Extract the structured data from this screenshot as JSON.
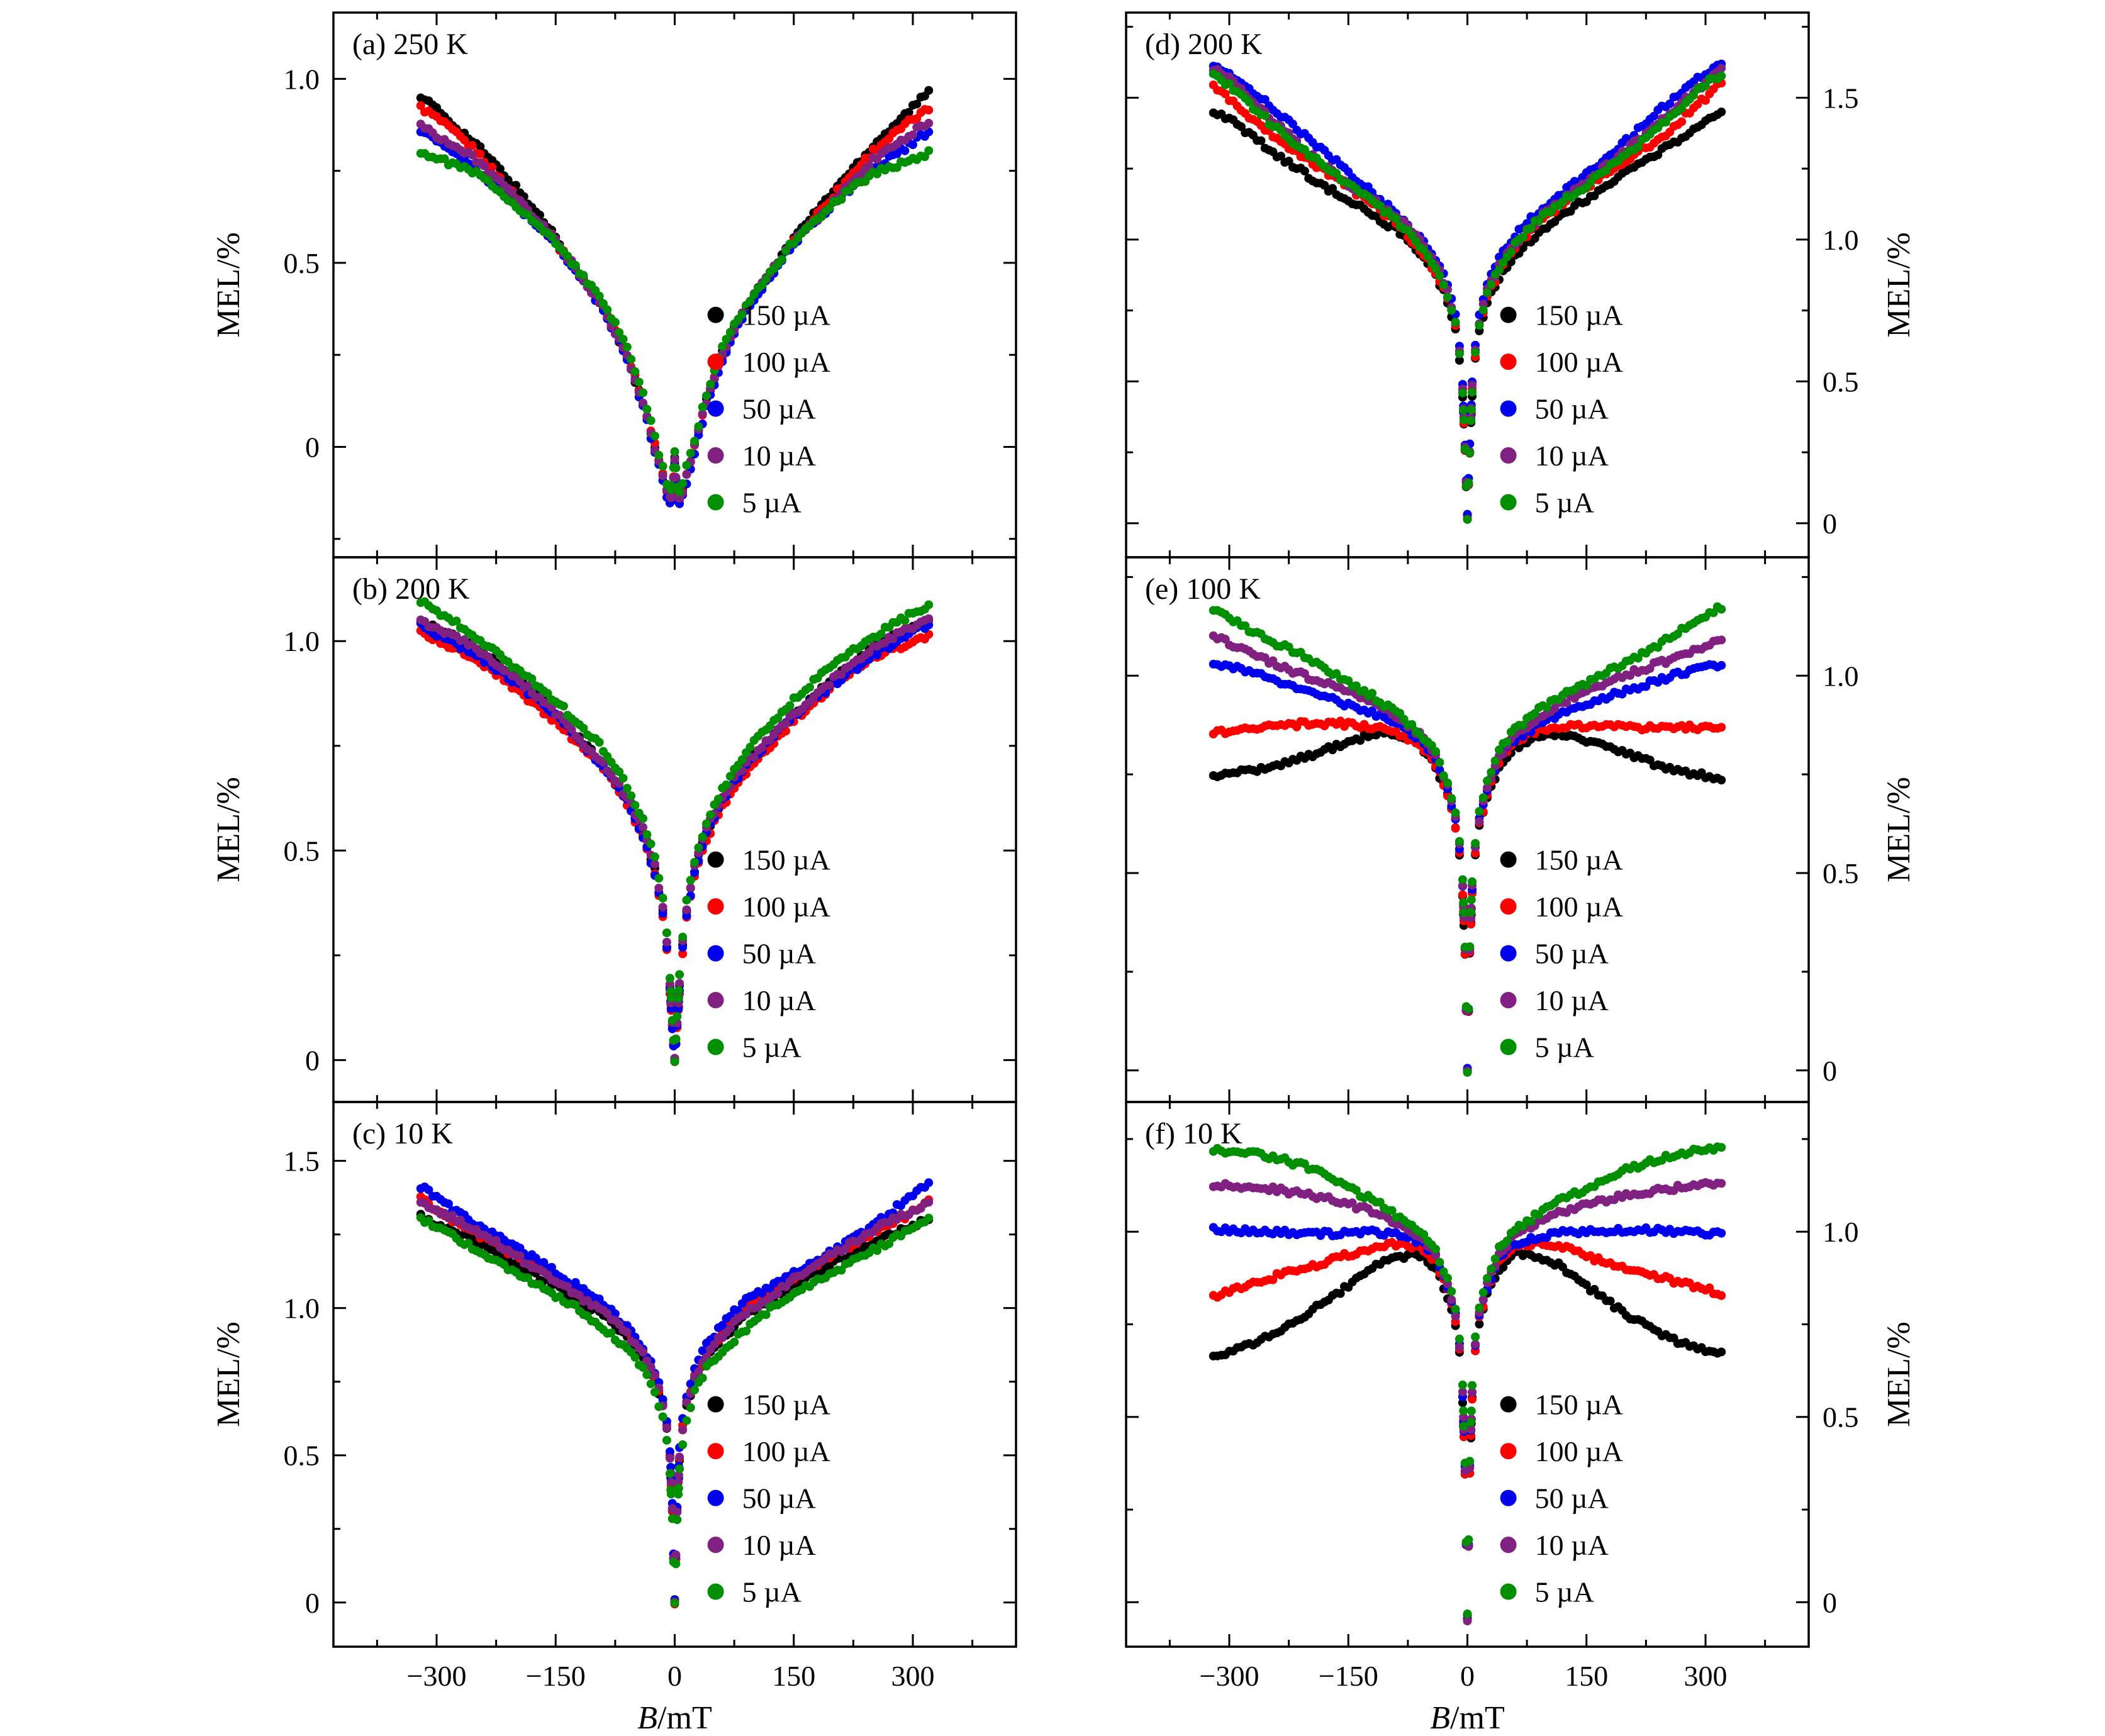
{
  "figure": {
    "xlabel_italic": "B",
    "xlabel_rest": "/mT",
    "ylabel": "MEL/%",
    "background": "#ffffff",
    "axis_color": "#000000",
    "xlim": [
      -430,
      430
    ],
    "x_ticks": [
      -300,
      -150,
      0,
      150,
      300
    ],
    "x_minor_ticks": [
      -375,
      -225,
      -75,
      75,
      225,
      375
    ]
  },
  "legend": {
    "labels": [
      "150 µA",
      "100 µA",
      "50 µA",
      "10 µA",
      "5 µA"
    ],
    "colors": [
      "#000000",
      "#ff0000",
      "#0000ee",
      "#802080",
      "#008f00"
    ]
  },
  "chart_data": [
    {
      "id": "a",
      "label": "(a) 250 K",
      "column": "left",
      "row": 0,
      "type": "scatter",
      "xlabel": "B/mT",
      "ylabel": "MEL/%",
      "ylim": [
        -0.3,
        1.18
      ],
      "y_ticks": [
        0,
        0.5,
        1.0
      ],
      "y_minor_step": 0.25,
      "mirror_x": true,
      "x_anchor": [
        0,
        3,
        6,
        10,
        15,
        25,
        40,
        60,
        90,
        120,
        150,
        200,
        250,
        300,
        320
      ],
      "series": [
        {
          "name": "150 µA",
          "color": "#000000",
          "y": [
            -0.03,
            -0.13,
            -0.14,
            -0.12,
            -0.08,
            0.0,
            0.12,
            0.25,
            0.38,
            0.47,
            0.57,
            0.7,
            0.82,
            0.92,
            0.96
          ]
        },
        {
          "name": "100 µA",
          "color": "#ff0000",
          "y": [
            -0.04,
            -0.135,
            -0.14,
            -0.12,
            -0.08,
            0.0,
            0.12,
            0.25,
            0.38,
            0.47,
            0.56,
            0.68,
            0.8,
            0.89,
            0.92
          ]
        },
        {
          "name": "50 µA",
          "color": "#0000ee",
          "y": [
            -0.04,
            -0.13,
            -0.15,
            -0.13,
            -0.09,
            -0.01,
            0.11,
            0.24,
            0.37,
            0.46,
            0.55,
            0.66,
            0.76,
            0.83,
            0.86
          ]
        },
        {
          "name": "10 µA",
          "color": "#802080",
          "y": [
            -0.03,
            -0.13,
            -0.14,
            -0.12,
            -0.08,
            0.0,
            0.12,
            0.25,
            0.38,
            0.47,
            0.56,
            0.67,
            0.78,
            0.85,
            0.88
          ]
        },
        {
          "name": "5 µA",
          "color": "#008f00",
          "y": [
            -0.01,
            -0.11,
            -0.12,
            -0.1,
            -0.06,
            0.02,
            0.14,
            0.27,
            0.39,
            0.48,
            0.56,
            0.66,
            0.74,
            0.78,
            0.8
          ]
        }
      ]
    },
    {
      "id": "b",
      "label": "(b) 200 K",
      "column": "left",
      "row": 1,
      "type": "scatter",
      "xlabel": "B/mT",
      "ylabel": "MEL/%",
      "ylim": [
        -0.1,
        1.2
      ],
      "y_ticks": [
        0,
        0.5,
        1.0
      ],
      "y_minor_step": 0.25,
      "mirror_x": true,
      "x_anchor": [
        0,
        3,
        6,
        10,
        15,
        25,
        40,
        60,
        90,
        120,
        150,
        200,
        250,
        300,
        320
      ],
      "series": [
        {
          "name": "150 µA",
          "color": "#000000",
          "y": [
            0.0,
            0.08,
            0.17,
            0.27,
            0.35,
            0.45,
            0.54,
            0.62,
            0.71,
            0.77,
            0.83,
            0.91,
            0.98,
            1.03,
            1.05
          ]
        },
        {
          "name": "100 µA",
          "color": "#ff0000",
          "y": [
            0.0,
            0.08,
            0.16,
            0.26,
            0.34,
            0.44,
            0.53,
            0.61,
            0.69,
            0.75,
            0.81,
            0.89,
            0.96,
            1.0,
            1.02
          ]
        },
        {
          "name": "50 µA",
          "color": "#0000ee",
          "y": [
            0.0,
            0.08,
            0.17,
            0.27,
            0.35,
            0.45,
            0.54,
            0.62,
            0.7,
            0.76,
            0.82,
            0.9,
            0.97,
            1.02,
            1.04
          ]
        },
        {
          "name": "10 µA",
          "color": "#802080",
          "y": [
            0.0,
            0.09,
            0.18,
            0.28,
            0.36,
            0.46,
            0.55,
            0.63,
            0.71,
            0.77,
            0.83,
            0.91,
            0.98,
            1.03,
            1.05
          ]
        },
        {
          "name": "5 µA",
          "color": "#008f00",
          "y": [
            0.0,
            0.1,
            0.2,
            0.3,
            0.38,
            0.48,
            0.57,
            0.65,
            0.74,
            0.8,
            0.86,
            0.94,
            1.01,
            1.07,
            1.09
          ]
        }
      ]
    },
    {
      "id": "c",
      "label": "(c) 10 K",
      "column": "left",
      "row": 2,
      "type": "scatter",
      "xlabel": "B/mT",
      "ylabel": "MEL/%",
      "ylim": [
        -0.15,
        1.7
      ],
      "y_ticks": [
        0,
        0.5,
        1.0,
        1.5
      ],
      "y_minor_step": 0.25,
      "mirror_x": true,
      "x_anchor": [
        0,
        3,
        6,
        10,
        15,
        25,
        40,
        60,
        90,
        120,
        150,
        200,
        250,
        300,
        320
      ],
      "series": [
        {
          "name": "150 µA",
          "color": "#000000",
          "y": [
            0.0,
            0.3,
            0.48,
            0.58,
            0.66,
            0.75,
            0.83,
            0.9,
            0.98,
            1.03,
            1.08,
            1.15,
            1.22,
            1.28,
            1.31
          ]
        },
        {
          "name": "100 µA",
          "color": "#ff0000",
          "y": [
            0.0,
            0.32,
            0.5,
            0.6,
            0.68,
            0.77,
            0.85,
            0.92,
            1.0,
            1.05,
            1.1,
            1.18,
            1.26,
            1.33,
            1.37
          ]
        },
        {
          "name": "50 µA",
          "color": "#0000ee",
          "y": [
            0.0,
            0.33,
            0.52,
            0.62,
            0.7,
            0.79,
            0.87,
            0.94,
            1.02,
            1.07,
            1.12,
            1.2,
            1.28,
            1.38,
            1.42
          ]
        },
        {
          "name": "10 µA",
          "color": "#802080",
          "y": [
            0.0,
            0.31,
            0.49,
            0.59,
            0.67,
            0.76,
            0.84,
            0.91,
            0.99,
            1.04,
            1.1,
            1.18,
            1.26,
            1.33,
            1.36
          ]
        },
        {
          "name": "5 µA",
          "color": "#008f00",
          "y": [
            0.0,
            0.28,
            0.45,
            0.55,
            0.63,
            0.72,
            0.8,
            0.86,
            0.93,
            0.99,
            1.04,
            1.12,
            1.2,
            1.28,
            1.3
          ]
        }
      ]
    },
    {
      "id": "d",
      "label": "(d) 200 K",
      "column": "right",
      "row": 0,
      "type": "scatter",
      "xlabel": "B/mT",
      "ylabel": "MEL/%",
      "ylim": [
        -0.12,
        1.8
      ],
      "y_ticks": [
        0,
        0.5,
        1.0,
        1.5
      ],
      "y_minor_step": 0.25,
      "mirror_x": true,
      "x_anchor": [
        0,
        3,
        6,
        10,
        15,
        25,
        40,
        60,
        90,
        120,
        150,
        200,
        250,
        300,
        320
      ],
      "series": [
        {
          "name": "150 µA",
          "color": "#000000",
          "y": [
            0.02,
            0.25,
            0.45,
            0.58,
            0.68,
            0.78,
            0.87,
            0.95,
            1.03,
            1.09,
            1.14,
            1.23,
            1.32,
            1.42,
            1.45
          ]
        },
        {
          "name": "100 µA",
          "color": "#ff0000",
          "y": [
            0.02,
            0.26,
            0.47,
            0.6,
            0.7,
            0.8,
            0.89,
            0.97,
            1.06,
            1.12,
            1.18,
            1.28,
            1.38,
            1.5,
            1.55
          ]
        },
        {
          "name": "50 µA",
          "color": "#0000ee",
          "y": [
            0.02,
            0.27,
            0.49,
            0.63,
            0.73,
            0.84,
            0.93,
            1.01,
            1.1,
            1.17,
            1.24,
            1.35,
            1.47,
            1.58,
            1.62
          ]
        },
        {
          "name": "10 µA",
          "color": "#802080",
          "y": [
            0.02,
            0.26,
            0.48,
            0.61,
            0.71,
            0.82,
            0.91,
            0.99,
            1.08,
            1.14,
            1.2,
            1.31,
            1.43,
            1.56,
            1.6
          ]
        },
        {
          "name": "5 µA",
          "color": "#008f00",
          "y": [
            0.02,
            0.26,
            0.47,
            0.6,
            0.71,
            0.81,
            0.9,
            0.98,
            1.07,
            1.13,
            1.19,
            1.3,
            1.42,
            1.55,
            1.58
          ]
        }
      ]
    },
    {
      "id": "e",
      "label": "(e) 100 K",
      "column": "right",
      "row": 1,
      "type": "scatter",
      "xlabel": "B/mT",
      "ylabel": "MEL/%",
      "ylim": [
        -0.08,
        1.3
      ],
      "y_ticks": [
        0,
        0.5,
        1.0
      ],
      "y_minor_step": 0.25,
      "mirror_x": true,
      "x_anchor": [
        0,
        3,
        6,
        10,
        15,
        25,
        40,
        60,
        90,
        120,
        150,
        200,
        250,
        300,
        320
      ],
      "series": [
        {
          "name": "150 µA",
          "color": "#000000",
          "y": [
            0.0,
            0.3,
            0.45,
            0.55,
            0.62,
            0.7,
            0.77,
            0.82,
            0.85,
            0.85,
            0.83,
            0.8,
            0.77,
            0.75,
            0.74
          ]
        },
        {
          "name": "100 µA",
          "color": "#ff0000",
          "y": [
            0.0,
            0.3,
            0.45,
            0.55,
            0.62,
            0.7,
            0.78,
            0.83,
            0.86,
            0.87,
            0.875,
            0.875,
            0.87,
            0.865,
            0.86
          ]
        },
        {
          "name": "50 µA",
          "color": "#0000ee",
          "y": [
            0.0,
            0.31,
            0.46,
            0.56,
            0.63,
            0.71,
            0.79,
            0.84,
            0.88,
            0.91,
            0.93,
            0.96,
            0.99,
            1.02,
            1.03
          ]
        },
        {
          "name": "10 µA",
          "color": "#802080",
          "y": [
            0.0,
            0.31,
            0.47,
            0.57,
            0.64,
            0.72,
            0.8,
            0.85,
            0.89,
            0.93,
            0.96,
            1.0,
            1.04,
            1.08,
            1.1
          ]
        },
        {
          "name": "5 µA",
          "color": "#008f00",
          "y": [
            0.0,
            0.32,
            0.48,
            0.58,
            0.65,
            0.73,
            0.81,
            0.86,
            0.91,
            0.95,
            0.98,
            1.04,
            1.09,
            1.15,
            1.17
          ]
        }
      ]
    },
    {
      "id": "f",
      "label": "(f) 10 K",
      "column": "right",
      "row": 2,
      "type": "scatter",
      "xlabel": "B/mT",
      "ylabel": "MEL/%",
      "ylim": [
        -0.12,
        1.35
      ],
      "y_ticks": [
        0,
        0.5,
        1.0
      ],
      "y_minor_step": 0.25,
      "mirror_x": true,
      "x_anchor": [
        0,
        3,
        6,
        10,
        15,
        25,
        40,
        60,
        90,
        120,
        150,
        200,
        250,
        300,
        320
      ],
      "series": [
        {
          "name": "150 µA",
          "color": "#000000",
          "y": [
            -0.04,
            0.35,
            0.55,
            0.68,
            0.75,
            0.83,
            0.9,
            0.94,
            0.93,
            0.9,
            0.85,
            0.78,
            0.72,
            0.68,
            0.67
          ]
        },
        {
          "name": "100 µA",
          "color": "#ff0000",
          "y": [
            -0.04,
            0.35,
            0.55,
            0.68,
            0.76,
            0.84,
            0.92,
            0.96,
            0.97,
            0.96,
            0.94,
            0.9,
            0.87,
            0.84,
            0.83
          ]
        },
        {
          "name": "50 µA",
          "color": "#0000ee",
          "y": [
            -0.04,
            0.36,
            0.56,
            0.69,
            0.77,
            0.85,
            0.93,
            0.97,
            0.99,
            1.0,
            1.0,
            1.0,
            1.0,
            1.0,
            1.0
          ]
        },
        {
          "name": "10 µA",
          "color": "#802080",
          "y": [
            -0.04,
            0.36,
            0.57,
            0.7,
            0.78,
            0.86,
            0.94,
            0.99,
            1.02,
            1.05,
            1.07,
            1.1,
            1.12,
            1.13,
            1.13
          ]
        },
        {
          "name": "5 µA",
          "color": "#008f00",
          "y": [
            -0.04,
            0.37,
            0.58,
            0.71,
            0.79,
            0.87,
            0.95,
            1.0,
            1.05,
            1.09,
            1.12,
            1.17,
            1.2,
            1.22,
            1.22
          ]
        }
      ]
    }
  ]
}
